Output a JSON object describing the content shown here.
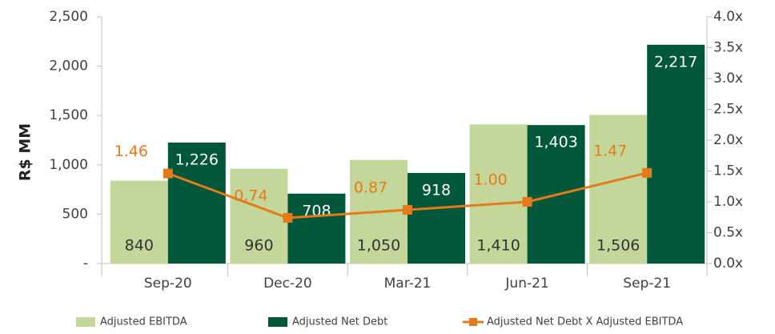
{
  "chart_data": {
    "type": "bar",
    "y_label": "R$ MM",
    "categories": [
      "Sep-20",
      "Dec-20",
      "Mar-21",
      "Jun-21",
      "Sep-21"
    ],
    "series": [
      {
        "name": "Adjusted EBITDA",
        "color": "#c4d79b",
        "values": [
          840,
          960,
          1050,
          1410,
          1506
        ],
        "value_labels": [
          "840",
          "960",
          "1,050",
          "1,410",
          "1,506"
        ]
      },
      {
        "name": "Adjusted Net Debt",
        "color": "#00573a",
        "values": [
          1226,
          708,
          918,
          1403,
          2217
        ],
        "value_labels": [
          "1,226",
          "708",
          "918",
          "1,403",
          "2,217"
        ]
      },
      {
        "name": "Adjusted Net Debt X Adjusted EBITDA",
        "type": "line",
        "axis": "y2",
        "color": "#e57a1a",
        "values": [
          1.46,
          0.74,
          0.87,
          1.0,
          1.47
        ],
        "value_labels": [
          "1.46",
          "0.74",
          "0.87",
          "1.00",
          "1.47"
        ]
      }
    ],
    "ylim": [
      0,
      2500
    ],
    "yticks": [
      {
        "value": 0,
        "label": "-"
      },
      500,
      {
        "value": 1000,
        "label": "1,000"
      },
      {
        "value": 1500,
        "label": "1,500"
      },
      {
        "value": 2000,
        "label": "2,000"
      },
      {
        "value": 2500,
        "label": "2,500"
      }
    ],
    "y2lim": [
      0,
      4
    ],
    "y2ticks": [
      {
        "value": 0,
        "label": "0.0x"
      },
      {
        "value": 0.5,
        "label": "0.5x"
      },
      {
        "value": 1,
        "label": "1.0x"
      },
      {
        "value": 1.5,
        "label": "1.5x"
      },
      {
        "value": 2,
        "label": "2.0x"
      },
      {
        "value": 2.5,
        "label": "2.5x"
      },
      {
        "value": 3,
        "label": "3.0x"
      },
      {
        "value": 3.5,
        "label": "3.5x"
      },
      {
        "value": 4,
        "label": "4.0x"
      }
    ],
    "legend": "bottom"
  }
}
